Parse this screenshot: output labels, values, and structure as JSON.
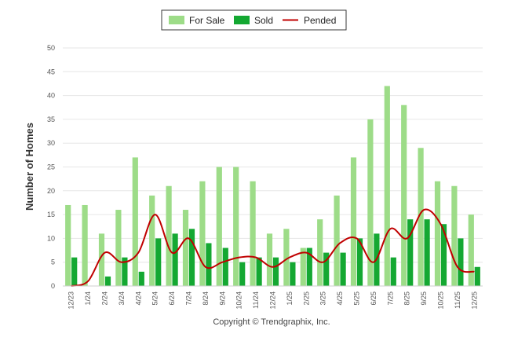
{
  "chart_data": {
    "type": "bar",
    "title": "",
    "xlabel": "",
    "ylabel": "Number of Homes",
    "ylim": [
      0,
      50
    ],
    "yticks": [
      0,
      5,
      10,
      15,
      20,
      25,
      30,
      35,
      40,
      45,
      50
    ],
    "legend_position": "top-center",
    "categories": [
      "12/23",
      "1/24",
      "2/24",
      "3/24",
      "4/24",
      "5/24",
      "6/24",
      "7/24",
      "8/24",
      "9/24",
      "10/24",
      "11/24",
      "12/24",
      "1/25",
      "2/25",
      "3/25",
      "4/25",
      "5/25",
      "6/25",
      "7/25",
      "8/25",
      "9/25",
      "10/25",
      "11/25",
      "12/25"
    ],
    "series": [
      {
        "name": "For Sale",
        "type": "bar",
        "color": "#9ddc88",
        "values": [
          17,
          17,
          11,
          16,
          27,
          19,
          21,
          16,
          22,
          25,
          25,
          22,
          11,
          12,
          8,
          14,
          19,
          27,
          35,
          42,
          38,
          29,
          22,
          21,
          15
        ]
      },
      {
        "name": "Sold",
        "type": "bar",
        "color": "#14a832",
        "values": [
          6,
          0,
          2,
          6,
          3,
          10,
          11,
          12,
          9,
          8,
          5,
          6,
          6,
          5,
          8,
          7,
          7,
          10,
          11,
          6,
          14,
          14,
          13,
          10,
          4
        ]
      },
      {
        "name": "Pended",
        "type": "line",
        "color": "#c00000",
        "values": [
          0,
          1,
          7,
          5,
          7,
          15,
          7,
          10,
          4,
          5,
          6,
          6,
          4,
          6,
          7,
          5,
          9,
          10,
          5,
          12,
          10,
          16,
          13,
          4,
          3
        ]
      }
    ]
  },
  "footer": {
    "copyright": "Copyright © Trendgraphix, Inc."
  }
}
